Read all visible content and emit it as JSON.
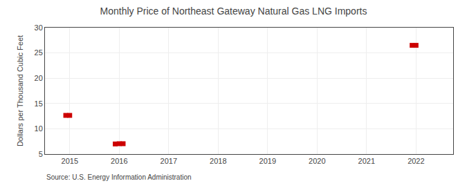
{
  "chart_data": {
    "type": "scatter",
    "title": "Monthly Price of Northeast Gateway Natural Gas LNG Imports",
    "ylabel": "Dollars per Thousand Cubic Feet",
    "source": "Source: U.S. Energy Information Administration",
    "x": [
      2014.92,
      2015.0,
      2015.92,
      2016.0,
      2016.08,
      2021.92,
      2022.0
    ],
    "values": [
      12.65,
      12.65,
      7.0,
      7.05,
      7.05,
      26.5,
      26.5
    ],
    "color": "#cc0000",
    "marker": "square",
    "xlim": [
      2014.5,
      2022.75
    ],
    "ylim": [
      5,
      30
    ],
    "xticks": [
      2015,
      2016,
      2017,
      2018,
      2019,
      2020,
      2021,
      2022
    ],
    "yticks": [
      5,
      10,
      15,
      20,
      25,
      30
    ],
    "grid": true
  }
}
